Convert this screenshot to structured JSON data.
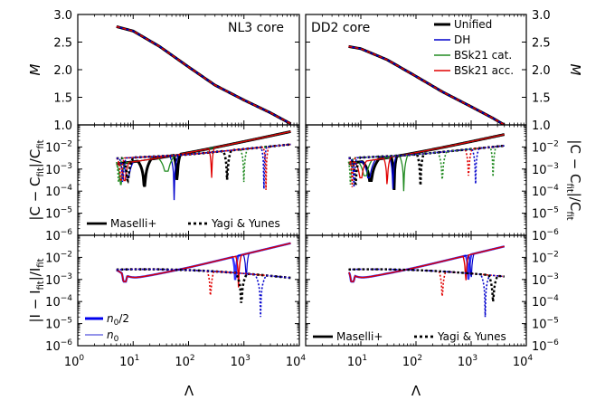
{
  "chart_data": {
    "type": "line",
    "title": "",
    "xlabel": "Λ",
    "x_ticks": [
      "10^0",
      "10^1",
      "10^2",
      "10^3",
      "10^4"
    ],
    "xlim": [
      1,
      10000
    ],
    "rows": [
      {
        "ylabel": "M",
        "yscale": "linear",
        "ylim": [
          1.0,
          3.0
        ],
        "y_ticks": [
          "1.0",
          "1.5",
          "2.0",
          "2.5",
          "3.0"
        ]
      },
      {
        "ylabel": "|C − C_fit|/C_fit",
        "yscale": "log",
        "ylim": [
          1e-06,
          0.1
        ],
        "y_ticks": [
          "10^-6",
          "10^-5",
          "10^-4",
          "10^-3",
          "10^-2"
        ]
      },
      {
        "ylabel": "|I − I_fit|/I_fit",
        "yscale": "log",
        "ylim": [
          1e-06,
          0.1
        ],
        "y_ticks": [
          "10^-6",
          "10^-5",
          "10^-4",
          "10^-3",
          "10^-2"
        ]
      }
    ],
    "columns": [
      {
        "title": "NL3 core",
        "lambda_range": [
          5,
          7000
        ]
      },
      {
        "title": "DD2 core",
        "lambda_range": [
          6,
          4000
        ]
      }
    ],
    "series": [
      {
        "name": "Unified",
        "color": "#000000"
      },
      {
        "name": "DH",
        "color": "#0000cc"
      },
      {
        "name": "BSk21 cat.",
        "color": "#228b22"
      },
      {
        "name": "BSk21 acc.",
        "color": "#e00000"
      }
    ],
    "mass_lambda": [
      {
        "lambda": 5,
        "M": 2.78
      },
      {
        "lambda": 10,
        "M": 2.7
      },
      {
        "lambda": 30,
        "M": 2.42
      },
      {
        "lambda": 100,
        "M": 2.05
      },
      {
        "lambda": 300,
        "M": 1.72
      },
      {
        "lambda": 1000,
        "M": 1.45
      },
      {
        "lambda": 3000,
        "M": 1.22
      },
      {
        "lambda": 7000,
        "M": 1.02
      }
    ],
    "mass_lambda_dd2": [
      {
        "lambda": 6,
        "M": 2.42
      },
      {
        "lambda": 10,
        "M": 2.38
      },
      {
        "lambda": 30,
        "M": 2.18
      },
      {
        "lambda": 100,
        "M": 1.88
      },
      {
        "lambda": 300,
        "M": 1.6
      },
      {
        "lambda": 1000,
        "M": 1.33
      },
      {
        "lambda": 2500,
        "M": 1.12
      },
      {
        "lambda": 4000,
        "M": 1.0
      }
    ],
    "fit_legend": [
      {
        "name": "Maselli+",
        "style": "solid"
      },
      {
        "name": "Yagi & Yunes",
        "style": "dotted"
      }
    ],
    "n0_legend": [
      {
        "name": "n₀/2",
        "color": "#0000ee",
        "width": "thick"
      },
      {
        "name": "n₀",
        "color": "#5555dd",
        "width": "thin"
      }
    ]
  },
  "labels": {
    "ylabel_m": "M",
    "ylabel_c_left": "|C − C",
    "ylabel_c_sub": "fit",
    "ylabel_c_mid": "|/C",
    "ylabel_i_left": "|I − I",
    "ylabel_i_mid": "|/I",
    "lambda": "Λ",
    "nl3": "NL3 core",
    "dd2": "DD2 core",
    "unified": "Unified",
    "dh": "DH",
    "bsk_cat": "BSk21 cat.",
    "bsk_acc": "BSk21 acc.",
    "maselli": "Maselli+",
    "yagi": "Yagi & Yunes",
    "n0half": "n",
    "n0half_sub": "0",
    "n0half_tail": "/2",
    "n0": "n",
    "n0_sub": "0"
  }
}
